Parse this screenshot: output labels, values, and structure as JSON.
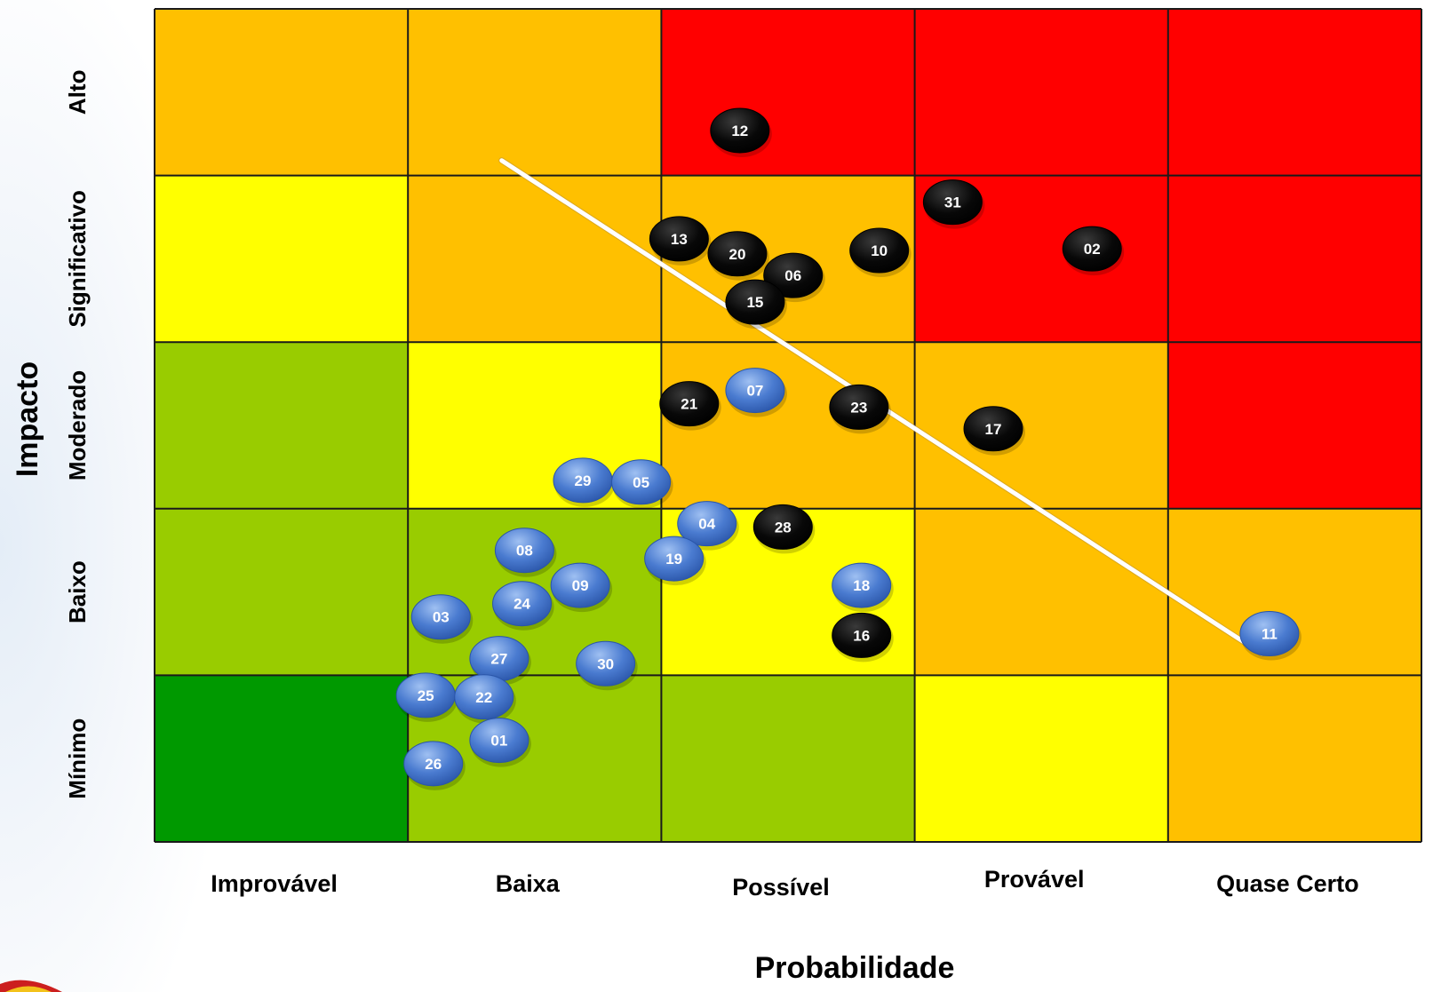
{
  "chart_data": {
    "type": "scatter",
    "title": "",
    "xlabel": "Probabilidade",
    "ylabel": "Impacto",
    "x_categories": [
      "Improvável",
      "Baixa",
      "Possível",
      "Provável",
      "Quase Certo"
    ],
    "y_categories": [
      "Mínimo",
      "Baixo",
      "Moderado",
      "Significativo",
      "Alto"
    ],
    "xlim": [
      0,
      5
    ],
    "ylim": [
      0,
      5
    ],
    "grid": true,
    "heatmap_colors": [
      [
        "#009900",
        "#99cc00",
        "#99cc00",
        "#ffff00",
        "#ffc000"
      ],
      [
        "#99cc00",
        "#99cc00",
        "#ffff00",
        "#ffc000",
        "#ffc000"
      ],
      [
        "#99cc00",
        "#ffff00",
        "#ffc000",
        "#ffc000",
        "#ff0000"
      ],
      [
        "#ffff00",
        "#ffc000",
        "#ffc000",
        "#ff0000",
        "#ff0000"
      ],
      [
        "#ffc000",
        "#ffc000",
        "#ff0000",
        "#ff0000",
        "#ff0000"
      ]
    ],
    "colors": {
      "above_line": "#000000",
      "below_line": "#4a7bd0",
      "trend_line": "#ffffff"
    },
    "trend_line": {
      "from": [
        1.37,
        4.09
      ],
      "to": [
        4.37,
        1.13
      ]
    },
    "series": [
      {
        "marker_color": "#000000",
        "points": [
          {
            "label": "12",
            "x": 2.31,
            "y": 4.27
          },
          {
            "label": "31",
            "x": 3.15,
            "y": 3.84
          },
          {
            "label": "13",
            "x": 2.07,
            "y": 3.62
          },
          {
            "label": "20",
            "x": 2.3,
            "y": 3.53
          },
          {
            "label": "10",
            "x": 2.86,
            "y": 3.55
          },
          {
            "label": "02",
            "x": 3.7,
            "y": 3.56
          },
          {
            "label": "06",
            "x": 2.52,
            "y": 3.4
          },
          {
            "label": "15",
            "x": 2.37,
            "y": 3.24
          },
          {
            "label": "21",
            "x": 2.11,
            "y": 2.63
          },
          {
            "label": "23",
            "x": 2.78,
            "y": 2.61
          },
          {
            "label": "17",
            "x": 3.31,
            "y": 2.48
          },
          {
            "label": "28",
            "x": 2.48,
            "y": 1.89
          },
          {
            "label": "16",
            "x": 2.79,
            "y": 1.24
          }
        ]
      },
      {
        "marker_color": "#4a7bd0",
        "points": [
          {
            "label": "07",
            "x": 2.37,
            "y": 2.71
          },
          {
            "label": "29",
            "x": 1.69,
            "y": 2.17
          },
          {
            "label": "05",
            "x": 1.92,
            "y": 2.16
          },
          {
            "label": "04",
            "x": 2.18,
            "y": 1.91
          },
          {
            "label": "08",
            "x": 1.46,
            "y": 1.75
          },
          {
            "label": "19",
            "x": 2.05,
            "y": 1.7
          },
          {
            "label": "09",
            "x": 1.68,
            "y": 1.54
          },
          {
            "label": "18",
            "x": 2.79,
            "y": 1.54
          },
          {
            "label": "24",
            "x": 1.45,
            "y": 1.43
          },
          {
            "label": "03",
            "x": 1.13,
            "y": 1.35
          },
          {
            "label": "27",
            "x": 1.36,
            "y": 1.1
          },
          {
            "label": "30",
            "x": 1.78,
            "y": 1.07
          },
          {
            "label": "11",
            "x": 4.4,
            "y": 1.25
          },
          {
            "label": "25",
            "x": 1.07,
            "y": 0.88
          },
          {
            "label": "22",
            "x": 1.3,
            "y": 0.87
          },
          {
            "label": "01",
            "x": 1.36,
            "y": 0.61
          },
          {
            "label": "26",
            "x": 1.1,
            "y": 0.47
          }
        ]
      }
    ]
  }
}
